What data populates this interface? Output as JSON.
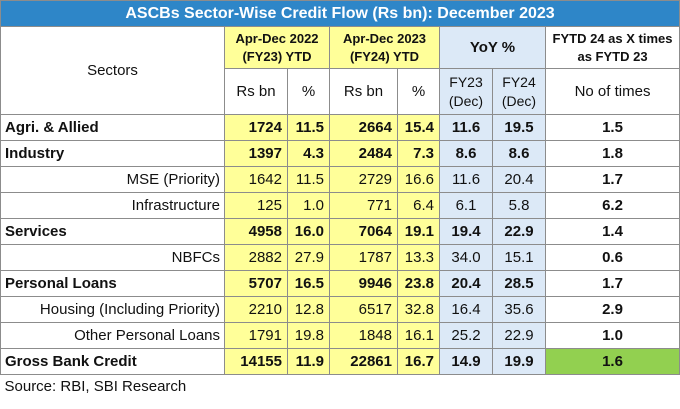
{
  "title": "ASCBs Sector-Wise Credit Flow (Rs bn): December 2023",
  "headers": {
    "sectors": "Sectors",
    "fy23_ytd_line1": "Apr-Dec 2022",
    "fy23_ytd_line2": "(FY23) YTD",
    "fy24_ytd_line1": "Apr-Dec 2023",
    "fy24_ytd_line2": "(FY24) YTD",
    "yoy": "YoY %",
    "times_line1": "FYTD 24 as X times",
    "times_line2": "as FYTD 23",
    "rsbn_1": "Rs bn",
    "pct_1": "%",
    "rsbn_2": "Rs bn",
    "pct_2": "%",
    "fy23_dec_line1": "FY23",
    "fy23_dec_line2": "(Dec)",
    "fy24_dec_line1": "FY24",
    "fy24_dec_line2": "(Dec)",
    "no_of_times": "No of times"
  },
  "rows": [
    {
      "sector": "Agri. & Allied",
      "bold": true,
      "fy23_rs": "1724",
      "fy23_pct": "11.5",
      "fy24_rs": "2664",
      "fy24_pct": "15.4",
      "yoy_fy23": "11.6",
      "yoy_fy24": "19.5",
      "times": "1.5"
    },
    {
      "sector": "Industry",
      "bold": true,
      "fy23_rs": "1397",
      "fy23_pct": "4.3",
      "fy24_rs": "2484",
      "fy24_pct": "7.3",
      "yoy_fy23": "8.6",
      "yoy_fy24": "8.6",
      "times": "1.8"
    },
    {
      "sector": "MSE (Priority)",
      "bold": false,
      "fy23_rs": "1642",
      "fy23_pct": "11.5",
      "fy24_rs": "2729",
      "fy24_pct": "16.6",
      "yoy_fy23": "11.6",
      "yoy_fy24": "20.4",
      "times": "1.7"
    },
    {
      "sector": "Infrastructure",
      "bold": false,
      "fy23_rs": "125",
      "fy23_pct": "1.0",
      "fy24_rs": "771",
      "fy24_pct": "6.4",
      "yoy_fy23": "6.1",
      "yoy_fy24": "5.8",
      "times": "6.2"
    },
    {
      "sector": "Services",
      "bold": true,
      "fy23_rs": "4958",
      "fy23_pct": "16.0",
      "fy24_rs": "7064",
      "fy24_pct": "19.1",
      "yoy_fy23": "19.4",
      "yoy_fy24": "22.9",
      "times": "1.4"
    },
    {
      "sector": "NBFCs",
      "bold": false,
      "fy23_rs": "2882",
      "fy23_pct": "27.9",
      "fy24_rs": "1787",
      "fy24_pct": "13.3",
      "yoy_fy23": "34.0",
      "yoy_fy24": "15.1",
      "times": "0.6"
    },
    {
      "sector": "Personal Loans",
      "bold": true,
      "fy23_rs": "5707",
      "fy23_pct": "16.5",
      "fy24_rs": "9946",
      "fy24_pct": "23.8",
      "yoy_fy23": "20.4",
      "yoy_fy24": "28.5",
      "times": "1.7"
    },
    {
      "sector": "Housing (Including Priority)",
      "bold": false,
      "fy23_rs": "2210",
      "fy23_pct": "12.8",
      "fy24_rs": "6517",
      "fy24_pct": "32.8",
      "yoy_fy23": "16.4",
      "yoy_fy24": "35.6",
      "times": "2.9"
    },
    {
      "sector": "Other Personal Loans",
      "bold": false,
      "fy23_rs": "1791",
      "fy23_pct": "19.8",
      "fy24_rs": "1848",
      "fy24_pct": "16.1",
      "yoy_fy23": "25.2",
      "yoy_fy24": "22.9",
      "times": "1.0"
    },
    {
      "sector": "Gross Bank Credit",
      "bold": true,
      "fy23_rs": "14155",
      "fy23_pct": "11.9",
      "fy24_rs": "22861",
      "fy24_pct": "16.7",
      "yoy_fy23": "14.9",
      "yoy_fy24": "19.9",
      "times": "1.6"
    }
  ],
  "source": "Source: RBI, SBI Research",
  "colors": {
    "title_bg": "#2e86c8",
    "ytd_bg": "#ffff99",
    "yoy_bg": "#dce9f7",
    "highlight_bg": "#92d050"
  }
}
